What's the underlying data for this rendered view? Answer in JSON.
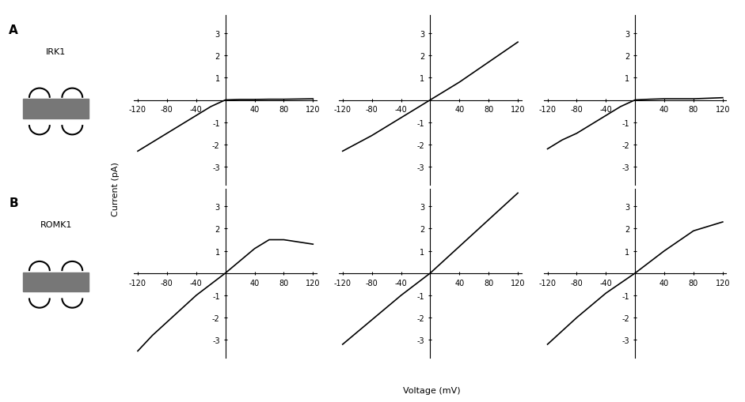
{
  "xlabel": "Voltage (mV)",
  "ylabel": "Current (pA)",
  "panels": [
    {
      "label": "A",
      "name": "IRK1"
    },
    {
      "label": "B",
      "name": "ROMK1"
    }
  ],
  "chart_data": [
    {
      "type": "line",
      "row": 0,
      "color": "#000000",
      "x": [
        -120,
        -100,
        -80,
        -60,
        -40,
        -20,
        0,
        20,
        40,
        60,
        80,
        100,
        120
      ],
      "values": [
        -2.3,
        -1.9,
        -1.5,
        -1.1,
        -0.7,
        -0.3,
        0,
        0.02,
        0.02,
        0.03,
        0.03,
        0.04,
        0.05
      ],
      "xlim": [
        -125,
        125
      ],
      "ylim": [
        -3.8,
        3.8
      ],
      "xticks": [
        -120,
        -80,
        -40,
        40,
        80,
        120
      ],
      "yticks": [
        -3,
        -2,
        -1,
        1,
        2,
        3
      ]
    },
    {
      "type": "line",
      "row": 0,
      "color": "#000000",
      "x": [
        -120,
        -80,
        -40,
        0,
        40,
        80,
        120
      ],
      "values": [
        -2.3,
        -1.6,
        -0.8,
        0,
        0.8,
        1.7,
        2.6
      ],
      "xlim": [
        -125,
        125
      ],
      "ylim": [
        -3.8,
        3.8
      ],
      "xticks": [
        -120,
        -80,
        -40,
        40,
        80,
        120
      ],
      "yticks": [
        -3,
        -2,
        -1,
        1,
        2,
        3
      ]
    },
    {
      "type": "line",
      "row": 0,
      "color": "#000000",
      "x": [
        -120,
        -100,
        -80,
        -60,
        -40,
        -20,
        0,
        20,
        40,
        80,
        120
      ],
      "values": [
        -2.2,
        -1.8,
        -1.5,
        -1.1,
        -0.7,
        -0.3,
        0,
        0.03,
        0.05,
        0.05,
        0.1
      ],
      "xlim": [
        -125,
        125
      ],
      "ylim": [
        -3.8,
        3.8
      ],
      "xticks": [
        -120,
        -80,
        -40,
        40,
        80,
        120
      ],
      "yticks": [
        -3,
        -2,
        -1,
        1,
        2,
        3
      ]
    },
    {
      "type": "line",
      "row": 1,
      "color": "#000000",
      "x": [
        -120,
        -100,
        -80,
        -60,
        -40,
        -20,
        0,
        20,
        40,
        60,
        80,
        100,
        120
      ],
      "values": [
        -3.5,
        -2.8,
        -2.2,
        -1.6,
        -1.0,
        -0.5,
        0,
        0.55,
        1.1,
        1.5,
        1.5,
        1.4,
        1.3
      ],
      "xlim": [
        -125,
        125
      ],
      "ylim": [
        -3.8,
        3.8
      ],
      "xticks": [
        -120,
        -80,
        -40,
        40,
        80,
        120
      ],
      "yticks": [
        -3,
        -2,
        -1,
        1,
        2,
        3
      ]
    },
    {
      "type": "line",
      "row": 1,
      "color": "#000000",
      "x": [
        -120,
        -80,
        -40,
        0,
        40,
        80,
        120
      ],
      "values": [
        -3.2,
        -2.1,
        -1.0,
        0,
        1.2,
        2.4,
        3.6
      ],
      "xlim": [
        -125,
        125
      ],
      "ylim": [
        -3.8,
        3.8
      ],
      "xticks": [
        -120,
        -80,
        -40,
        40,
        80,
        120
      ],
      "yticks": [
        -3,
        -2,
        -1,
        1,
        2,
        3
      ]
    },
    {
      "type": "line",
      "row": 1,
      "color": "#000000",
      "x": [
        -120,
        -80,
        -40,
        0,
        40,
        80,
        100,
        120
      ],
      "values": [
        -3.2,
        -2.0,
        -0.9,
        0,
        1.0,
        1.9,
        2.1,
        2.3
      ],
      "xlim": [
        -125,
        125
      ],
      "ylim": [
        -3.8,
        3.8
      ],
      "xticks": [
        -120,
        -80,
        -40,
        40,
        80,
        120
      ],
      "yticks": [
        -3,
        -2,
        -1,
        1,
        2,
        3
      ]
    }
  ]
}
